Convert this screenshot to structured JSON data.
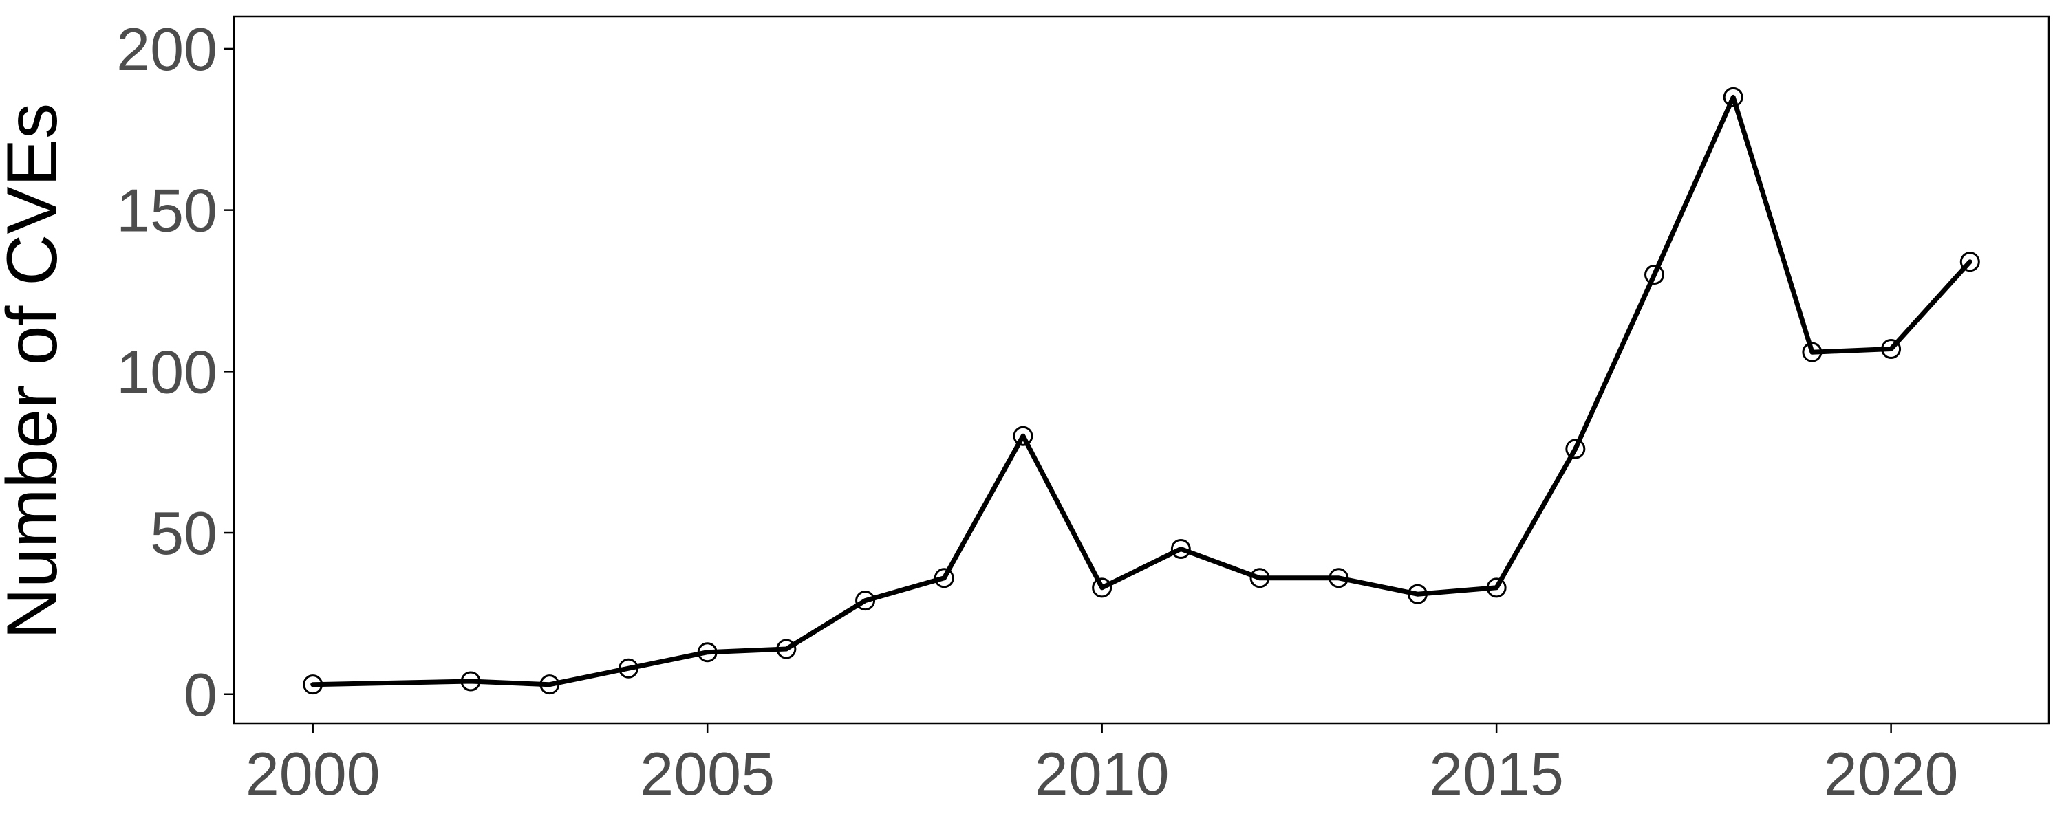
{
  "chart_data": {
    "type": "line",
    "title": "",
    "xlabel": "",
    "ylabel": "Number of CVEs",
    "x": [
      2000,
      2002,
      2003,
      2004,
      2005,
      2006,
      2007,
      2008,
      2009,
      2010,
      2011,
      2012,
      2013,
      2014,
      2015,
      2016,
      2017,
      2018,
      2019,
      2020,
      2021
    ],
    "series": [
      {
        "values": [
          3,
          4,
          3,
          8,
          13,
          14,
          29,
          36,
          80,
          33,
          45,
          36,
          36,
          31,
          33,
          76,
          130,
          185,
          106,
          107,
          134
        ]
      }
    ],
    "xlim": [
      1999,
      2022
    ],
    "ylim": [
      -9,
      210
    ],
    "xticks": [
      2000,
      2005,
      2010,
      2015,
      2020
    ],
    "yticks": [
      0,
      50,
      100,
      150,
      200
    ],
    "grid": false,
    "legend": "none",
    "colors": {
      "line": "#000000",
      "marker_stroke": "#000000",
      "marker_fill": "#ffffff",
      "tick_label": "#4d4d4d",
      "axis_title": "#000000",
      "panel_border": "#000000"
    }
  }
}
